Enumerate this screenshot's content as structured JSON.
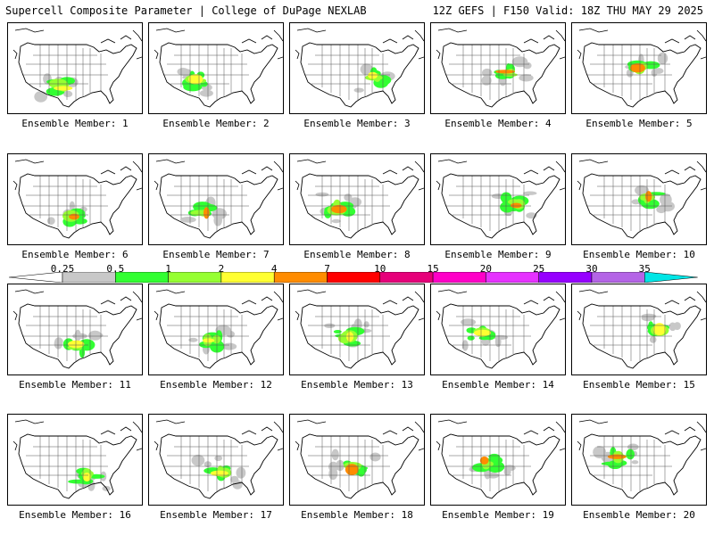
{
  "header": {
    "title": "Supercell Composite Parameter | College of DuPage NEXLAB",
    "run_info": "12Z GEFS | F150 Valid: 18Z THU MAY 29 2025"
  },
  "legend": {
    "ticks": [
      "0.25",
      "0.5",
      "1",
      "2",
      "4",
      "7",
      "10",
      "15",
      "20",
      "25",
      "30",
      "35"
    ],
    "colors": [
      "#c8c8c8",
      "#32ff32",
      "#96ff32",
      "#ffff32",
      "#ff8c00",
      "#ff0000",
      "#e6007a",
      "#ff00c8",
      "#e632ff",
      "#9600ff",
      "#b464e6",
      "#00e6e6"
    ]
  },
  "panels": [
    {
      "caption": "Ensemble Member: 1"
    },
    {
      "caption": "Ensemble Member: 2"
    },
    {
      "caption": "Ensemble Member: 3"
    },
    {
      "caption": "Ensemble Member: 4"
    },
    {
      "caption": "Ensemble Member: 5"
    },
    {
      "caption": "Ensemble Member: 6"
    },
    {
      "caption": "Ensemble Member: 7"
    },
    {
      "caption": "Ensemble Member: 8"
    },
    {
      "caption": "Ensemble Member: 9"
    },
    {
      "caption": "Ensemble Member: 10"
    },
    {
      "caption": "Ensemble Member: 11"
    },
    {
      "caption": "Ensemble Member: 12"
    },
    {
      "caption": "Ensemble Member: 13"
    },
    {
      "caption": "Ensemble Member: 14"
    },
    {
      "caption": "Ensemble Member: 15"
    },
    {
      "caption": "Ensemble Member: 16"
    },
    {
      "caption": "Ensemble Member: 17"
    },
    {
      "caption": "Ensemble Member: 18"
    },
    {
      "caption": "Ensemble Member: 19"
    },
    {
      "caption": "Ensemble Member: 20"
    }
  ]
}
